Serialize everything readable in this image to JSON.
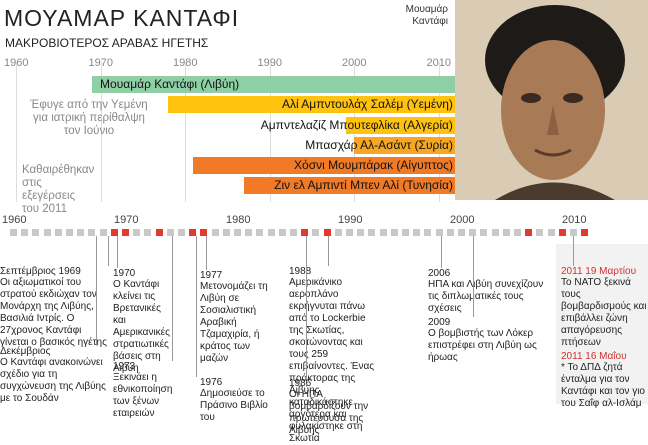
{
  "header": {
    "title": "ΜΟΥΑΜΑΡ ΚΑΝΤΑΦΙ",
    "subtitle": "ΜΑΚΡΟΒΙΟΤΕΡΟΣ ΑΡΑΒΑΣ ΗΓΕΤΗΣ"
  },
  "photo_caption": "Μουαμάρ Καντάφι",
  "colors": {
    "green": "#8fcfa5",
    "orange_dark": "#f07a25",
    "orange_light": "#f6a623",
    "yellow": "#ffc20e",
    "red": "#e23a2d",
    "grey": "#c8c8c8"
  },
  "chart_data": {
    "type": "gantt",
    "axis_years": [
      "1960",
      "1970",
      "1980",
      "1990",
      "2000",
      "2010"
    ],
    "bars": [
      {
        "label": "Μουαμάρ Καντάφι (Λιβύη)",
        "start": 1969,
        "end": 2011,
        "color": "green"
      },
      {
        "label": "Αλί Αμπντουλάχ Σαλέμ (Υεμένη)",
        "start": 1978,
        "end": 2011,
        "color": "yellow"
      },
      {
        "label": "Αμπντελαζίζ Μπουτεφλίκα (Αλγερία)",
        "start": 1999,
        "end": 2011,
        "color": "yellow"
      },
      {
        "label": "Μπασχάρ Αλ-Ασάντ (Συρία)",
        "start": 2000,
        "end": 2011,
        "color": "orange_light"
      },
      {
        "label": "Χόσνι Μουμπάρακ (Αίγυπτος)",
        "start": 1981,
        "end": 2011,
        "color": "orange_dark"
      },
      {
        "label": "Ζιν ελ Αμπιντί Μπεν Αλί (Τυνησία)",
        "start": 1987,
        "end": 2011,
        "color": "orange_dark"
      }
    ],
    "notes": [
      "Έφυγε από την Υεμένη για ιατρική περίθαλψη τον Ιούνιο",
      "Καθαιρέθηκαν στις εξεγέρσεις του 2011"
    ]
  },
  "timeline": {
    "years": [
      "1960",
      "1970",
      "1980",
      "1990",
      "2000",
      "2010"
    ],
    "events": [
      {
        "year": "Σεπτέμβριος 1969",
        "text": "Οι αξιωματικοί του στρατού εκδιώχαν τον Μονάρχη της Λιβύης, Βασιλιά Ιντρίς. Ο 27χρονος Καντάφι γίνεται ο βασικός ηγέτης"
      },
      {
        "year": "Δεκέμβριος",
        "text": "Ο Καντάφι ανακοινώνει σχέδιο για τη συγχώνευση της Λιβύης με το Σουδάν"
      },
      {
        "year": "1970",
        "text": "Ο Καντάφι κλείνει τις Βρετανικές και Αμερικανικές στρατιωτικές βάσεις στη Λιβύη"
      },
      {
        "year": "1973",
        "text": "Ξεκινάει η εθνικοποίηση των ξένων εταιρειών"
      },
      {
        "year": "1977",
        "text": "Μετονομάζει τη Λιβύη σε Σοσιαλιστική Αραβική Τζαμαχιρία, ή κράτος των μαζών"
      },
      {
        "year": "1976",
        "text": "Δημοσιεύσε το Πράσινο Βιβλίο του"
      },
      {
        "year": "1988",
        "text": "Αμερικάνικο αεροπλάνο εκρήγνυται πάνω από το Lockerbie της Σκωτίας, σκοτώνοντας και τους 259 επιβαίνοντες. Ένας πράκτορας της Λιβύης καταδικάστηκε αργότερα και φυλακίστηκε στη Σκωτία"
      },
      {
        "year": "1986",
        "text": "Οι ΗΠΑ βομβαρδίζουν την πρωτεύουσα της Λιβύης"
      },
      {
        "year": "2006",
        "text": "ΗΠΑ και Λιβύη συνεχίζουν τις διπλωματικές τους σχέσεις"
      },
      {
        "year": "2009",
        "text": "Ο βομβιστής των Λόκερ επιστρέφει στη Λιβύη ως ήρωας"
      },
      {
        "year": "2011 19 Μαρτίου",
        "text": "Το ΝΑΤΟ ξεκινά τους βομβαρδισμούς και επιβάλλει ζώνη απαγόρευσης πτήσεων"
      },
      {
        "year": "2011 16 Μαΐου",
        "text": "* Το ΔΠΔ ζητά ένταλμα για τον Καντάφι και τον γιο του Σαΐφ αλ-Ισλάμ"
      }
    ]
  }
}
